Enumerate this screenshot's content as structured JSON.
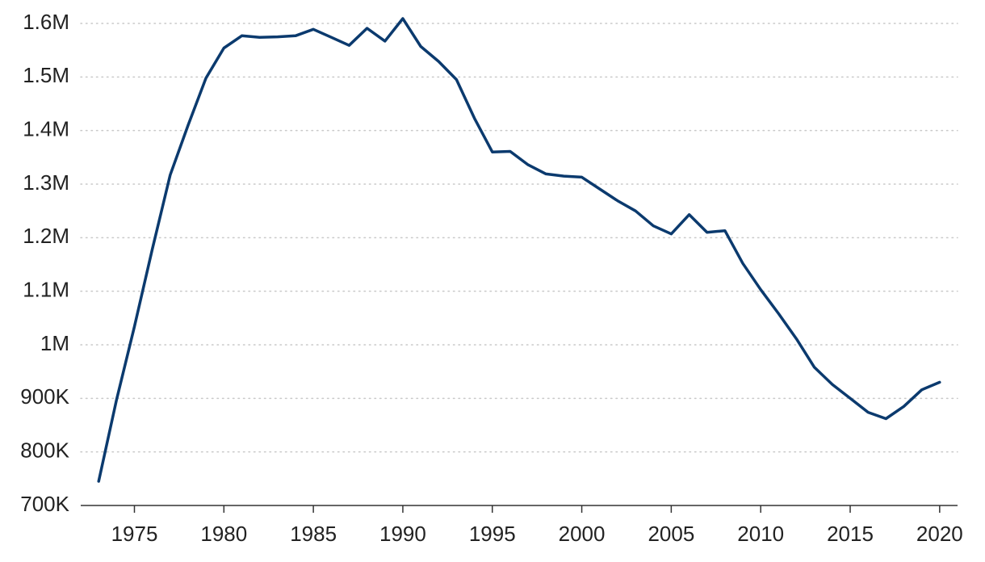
{
  "chart_data": {
    "type": "line",
    "title": "",
    "xlabel": "",
    "ylabel": "",
    "xlim": [
      1972,
      2021
    ],
    "ylim": [
      700000,
      1600000
    ],
    "y_ticks": [
      {
        "value": 700000,
        "label": "700K"
      },
      {
        "value": 800000,
        "label": "800K"
      },
      {
        "value": 900000,
        "label": "900K"
      },
      {
        "value": 1000000,
        "label": "1M"
      },
      {
        "value": 1100000,
        "label": "1.1M"
      },
      {
        "value": 1200000,
        "label": "1.2M"
      },
      {
        "value": 1300000,
        "label": "1.3M"
      },
      {
        "value": 1400000,
        "label": "1.4M"
      },
      {
        "value": 1500000,
        "label": "1.5M"
      },
      {
        "value": 1600000,
        "label": "1.6M"
      }
    ],
    "x_ticks": [
      {
        "value": 1975,
        "label": "1975"
      },
      {
        "value": 1980,
        "label": "1980"
      },
      {
        "value": 1985,
        "label": "1985"
      },
      {
        "value": 1990,
        "label": "1990"
      },
      {
        "value": 1995,
        "label": "1995"
      },
      {
        "value": 2000,
        "label": "2000"
      },
      {
        "value": 2005,
        "label": "2005"
      },
      {
        "value": 2010,
        "label": "2010"
      },
      {
        "value": 2015,
        "label": "2015"
      },
      {
        "value": 2020,
        "label": "2020"
      }
    ],
    "grid": "horizontal-dotted",
    "legend": "none",
    "series": [
      {
        "color": "#0b3a6e",
        "x": [
          1973,
          1974,
          1975,
          1976,
          1977,
          1978,
          1979,
          1980,
          1981,
          1982,
          1983,
          1984,
          1985,
          1986,
          1987,
          1988,
          1989,
          1990,
          1991,
          1992,
          1993,
          1994,
          1995,
          1996,
          1997,
          1998,
          1999,
          2000,
          2001,
          2002,
          2003,
          2004,
          2005,
          2006,
          2007,
          2008,
          2009,
          2010,
          2011,
          2012,
          2013,
          2014,
          2015,
          2016,
          2017,
          2018,
          2019,
          2020
        ],
        "y": [
          745000,
          897000,
          1034000,
          1179000,
          1317000,
          1410000,
          1498000,
          1554000,
          1577000,
          1574000,
          1575000,
          1577000,
          1589000,
          1574000,
          1559000,
          1591000,
          1567000,
          1609000,
          1557000,
          1529000,
          1495000,
          1423000,
          1360000,
          1361000,
          1336000,
          1319000,
          1315000,
          1313000,
          1291000,
          1269000,
          1250000,
          1222000,
          1207000,
          1243000,
          1210000,
          1213000,
          1152000,
          1103000,
          1058000,
          1011000,
          958000,
          926000,
          900000,
          874000,
          862000,
          885000,
          916000,
          930000
        ]
      }
    ]
  }
}
